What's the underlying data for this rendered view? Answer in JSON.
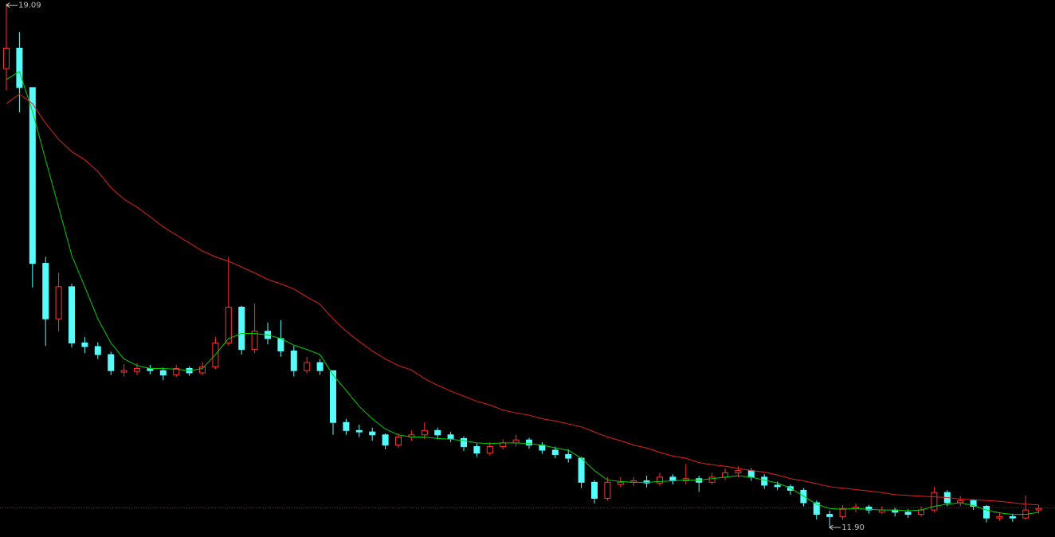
{
  "chart_data": {
    "type": "candlestick",
    "ylim": [
      11.78,
      19.14
    ],
    "up_color": "#ff3232",
    "down_color": "#54fcfc",
    "ref_color": "#a01818",
    "ref_line": 12.18,
    "candles": [
      [
        18.2,
        19.09,
        17.9,
        18.48
      ],
      [
        18.48,
        18.7,
        17.6,
        17.94
      ],
      [
        17.94,
        17.94,
        15.2,
        15.53
      ],
      [
        15.53,
        15.62,
        14.4,
        14.77
      ],
      [
        14.77,
        15.4,
        14.6,
        15.21
      ],
      [
        15.21,
        15.25,
        14.38,
        14.44
      ],
      [
        14.44,
        14.52,
        14.3,
        14.39
      ],
      [
        14.39,
        14.45,
        14.22,
        14.28
      ],
      [
        14.28,
        14.32,
        14.0,
        14.06
      ],
      [
        14.04,
        14.15,
        13.98,
        14.06
      ],
      [
        14.05,
        14.16,
        14.0,
        14.09
      ],
      [
        14.09,
        14.14,
        14.01,
        14.06
      ],
      [
        14.06,
        14.1,
        13.93,
        14.0
      ],
      [
        14.0,
        14.14,
        13.97,
        14.09
      ],
      [
        14.09,
        14.12,
        13.99,
        14.03
      ],
      [
        14.03,
        14.18,
        14.0,
        14.11
      ],
      [
        14.11,
        14.52,
        14.08,
        14.44
      ],
      [
        14.44,
        15.62,
        14.4,
        14.93
      ],
      [
        14.93,
        14.95,
        14.28,
        14.35
      ],
      [
        14.35,
        14.98,
        14.3,
        14.6
      ],
      [
        14.6,
        14.72,
        14.42,
        14.5
      ],
      [
        14.5,
        14.75,
        14.25,
        14.33
      ],
      [
        14.33,
        14.4,
        13.98,
        14.06
      ],
      [
        14.06,
        14.25,
        14.02,
        14.17
      ],
      [
        14.17,
        14.22,
        14.0,
        14.06
      ],
      [
        14.06,
        14.06,
        13.18,
        13.35
      ],
      [
        13.35,
        13.4,
        13.18,
        13.24
      ],
      [
        13.24,
        13.32,
        13.15,
        13.22
      ],
      [
        13.22,
        13.28,
        13.1,
        13.18
      ],
      [
        13.18,
        13.2,
        12.98,
        13.04
      ],
      [
        13.04,
        13.2,
        13.0,
        13.15
      ],
      [
        13.15,
        13.24,
        13.1,
        13.18
      ],
      [
        13.18,
        13.35,
        13.12,
        13.24
      ],
      [
        13.24,
        13.28,
        13.12,
        13.18
      ],
      [
        13.18,
        13.22,
        13.08,
        13.13
      ],
      [
        13.13,
        13.16,
        12.96,
        13.02
      ],
      [
        13.02,
        13.06,
        12.88,
        12.93
      ],
      [
        12.93,
        13.08,
        12.9,
        13.02
      ],
      [
        13.02,
        13.12,
        12.98,
        13.07
      ],
      [
        13.07,
        13.18,
        13.02,
        13.11
      ],
      [
        13.11,
        13.14,
        12.99,
        13.04
      ],
      [
        13.04,
        13.08,
        12.92,
        12.97
      ],
      [
        12.97,
        13.02,
        12.86,
        12.91
      ],
      [
        12.91,
        12.98,
        12.8,
        12.86
      ],
      [
        12.86,
        12.88,
        12.45,
        12.53
      ],
      [
        12.53,
        12.56,
        12.24,
        12.31
      ],
      [
        12.31,
        12.6,
        12.28,
        12.53
      ],
      [
        12.5,
        12.6,
        12.46,
        12.53
      ],
      [
        12.53,
        12.6,
        12.48,
        12.55
      ],
      [
        12.55,
        12.62,
        12.46,
        12.52
      ],
      [
        12.52,
        12.66,
        12.48,
        12.6
      ],
      [
        12.6,
        12.64,
        12.5,
        12.55
      ],
      [
        12.55,
        12.78,
        12.5,
        12.58
      ],
      [
        12.58,
        12.62,
        12.4,
        12.53
      ],
      [
        12.53,
        12.66,
        12.5,
        12.6
      ],
      [
        12.6,
        12.72,
        12.56,
        12.66
      ],
      [
        12.66,
        12.75,
        12.6,
        12.69
      ],
      [
        12.69,
        12.72,
        12.55,
        12.6
      ],
      [
        12.6,
        12.64,
        12.44,
        12.49
      ],
      [
        12.49,
        12.54,
        12.42,
        12.47
      ],
      [
        12.47,
        12.5,
        12.36,
        12.42
      ],
      [
        12.42,
        12.45,
        12.2,
        12.25
      ],
      [
        12.25,
        12.28,
        12.02,
        12.09
      ],
      [
        12.09,
        12.14,
        11.9,
        12.06
      ],
      [
        12.06,
        12.22,
        12.02,
        12.17
      ],
      [
        12.17,
        12.24,
        12.12,
        12.19
      ],
      [
        12.19,
        12.22,
        12.1,
        12.15
      ],
      [
        12.12,
        12.2,
        12.1,
        12.15
      ],
      [
        12.15,
        12.18,
        12.06,
        12.12
      ],
      [
        12.12,
        12.16,
        12.04,
        12.09
      ],
      [
        12.09,
        12.2,
        12.06,
        12.15
      ],
      [
        12.15,
        12.47,
        12.12,
        12.39
      ],
      [
        12.39,
        12.42,
        12.2,
        12.25
      ],
      [
        12.25,
        12.34,
        12.2,
        12.28
      ],
      [
        12.28,
        12.3,
        12.15,
        12.2
      ],
      [
        12.2,
        12.22,
        11.98,
        12.04
      ],
      [
        12.04,
        12.12,
        12.0,
        12.06
      ],
      [
        12.06,
        12.1,
        11.99,
        12.04
      ],
      [
        12.04,
        12.35,
        12.02,
        12.15
      ],
      [
        12.15,
        12.22,
        12.1,
        12.17
      ]
    ],
    "series": [
      {
        "color": "#00d000",
        "values": [
          18.05,
          18.16,
          17.61,
          16.95,
          16.3,
          15.64,
          15.21,
          14.77,
          14.44,
          14.22,
          14.13,
          14.09,
          14.09,
          14.08,
          14.06,
          14.09,
          14.28,
          14.5,
          14.57,
          14.57,
          14.55,
          14.5,
          14.41,
          14.35,
          14.28,
          14.0,
          13.79,
          13.57,
          13.4,
          13.26,
          13.18,
          13.15,
          13.15,
          13.13,
          13.12,
          13.1,
          13.07,
          13.06,
          13.07,
          13.07,
          13.06,
          13.04,
          13.0,
          12.97,
          12.86,
          12.69,
          12.56,
          12.54,
          12.53,
          12.53,
          12.54,
          12.55,
          12.56,
          12.56,
          12.58,
          12.6,
          12.62,
          12.6,
          12.56,
          12.52,
          12.45,
          12.34,
          12.23,
          12.17,
          12.16,
          12.17,
          12.16,
          12.15,
          12.15,
          12.14,
          12.15,
          12.2,
          12.23,
          12.25,
          12.21,
          12.15,
          12.11,
          12.09,
          12.09,
          12.12
        ]
      },
      {
        "color": "#e02020",
        "values": [
          17.72,
          17.85,
          17.72,
          17.45,
          17.23,
          17.06,
          16.95,
          16.79,
          16.57,
          16.41,
          16.3,
          16.17,
          16.03,
          15.92,
          15.81,
          15.7,
          15.62,
          15.56,
          15.48,
          15.4,
          15.31,
          15.25,
          15.18,
          15.07,
          14.97,
          14.77,
          14.6,
          14.46,
          14.33,
          14.22,
          14.13,
          14.07,
          13.95,
          13.86,
          13.78,
          13.71,
          13.64,
          13.59,
          13.52,
          13.48,
          13.45,
          13.4,
          13.37,
          13.33,
          13.29,
          13.22,
          13.15,
          13.1,
          13.04,
          13.0,
          12.94,
          12.89,
          12.86,
          12.8,
          12.77,
          12.75,
          12.72,
          12.69,
          12.67,
          12.63,
          12.58,
          12.55,
          12.51,
          12.47,
          12.45,
          12.43,
          12.41,
          12.39,
          12.36,
          12.35,
          12.34,
          12.33,
          12.32,
          12.3,
          12.29,
          12.28,
          12.27,
          12.25,
          12.23,
          12.22
        ]
      }
    ],
    "annotations": [
      {
        "label": "19.09",
        "candle": 0,
        "at": "high"
      },
      {
        "label": "11.90",
        "candle": 63,
        "at": "low"
      }
    ]
  }
}
